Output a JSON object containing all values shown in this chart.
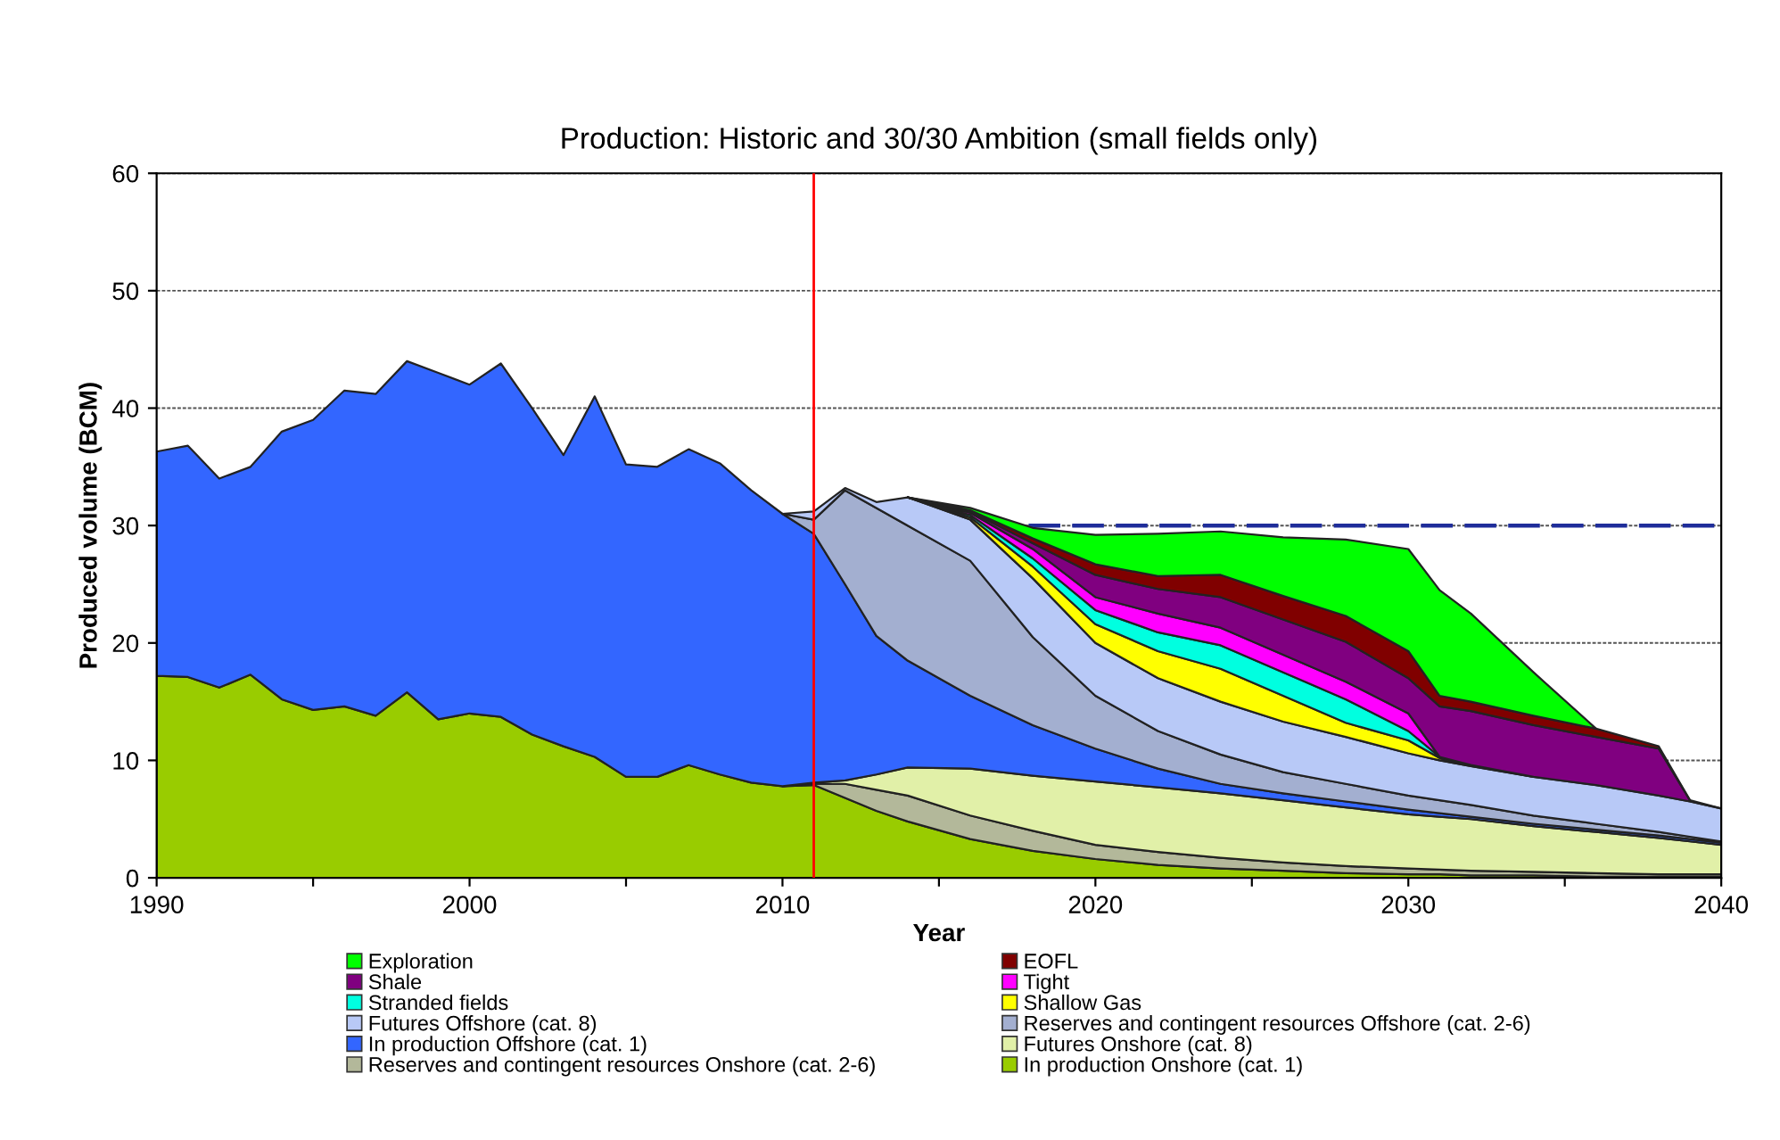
{
  "chart_data": {
    "type": "area",
    "stacked": true,
    "title": "Production: Historic and 30/30 Ambition (small fields only)",
    "xlabel": "Year",
    "ylabel": "Produced volume (BCM)",
    "x": [
      1990,
      1991,
      1992,
      1993,
      1994,
      1995,
      1996,
      1997,
      1998,
      1999,
      2000,
      2001,
      2002,
      2003,
      2004,
      2005,
      2006,
      2007,
      2008,
      2009,
      2010,
      2011,
      2012,
      2013,
      2014,
      2016,
      2018,
      2020,
      2022,
      2024,
      2026,
      2028,
      2030,
      2031,
      2032,
      2034,
      2036,
      2038,
      2039,
      2040
    ],
    "series": [
      {
        "name": "In production Onshore (cat. 1)",
        "color": "#99cc00",
        "values": [
          17.2,
          17.1,
          16.2,
          17.3,
          15.2,
          14.3,
          14.6,
          13.8,
          15.8,
          13.5,
          14.0,
          13.7,
          12.2,
          11.2,
          10.3,
          8.6,
          8.6,
          9.6,
          8.8,
          8.1,
          7.8,
          7.9,
          6.8,
          5.7,
          4.8,
          3.3,
          2.3,
          1.6,
          1.1,
          0.8,
          0.6,
          0.4,
          0.3,
          0.3,
          0.2,
          0.2,
          0.1,
          0.1,
          0.1,
          0.1
        ]
      },
      {
        "name": "Reserves and contingent resources Onshore (cat. 2-6)",
        "color": "#b3b89a",
        "values": [
          null,
          null,
          null,
          null,
          null,
          null,
          null,
          null,
          null,
          null,
          null,
          null,
          null,
          null,
          null,
          null,
          null,
          null,
          null,
          null,
          0,
          0.1,
          1.2,
          1.8,
          2.2,
          2.0,
          1.7,
          1.2,
          1.1,
          0.9,
          0.7,
          0.6,
          0.5,
          0.4,
          0.4,
          0.3,
          0.3,
          0.2,
          0.2,
          0.2
        ]
      },
      {
        "name": "Futures Onshore (cat. 8)",
        "color": "#e1f0a8",
        "values": [
          null,
          null,
          null,
          null,
          null,
          null,
          null,
          null,
          null,
          null,
          null,
          null,
          null,
          null,
          null,
          null,
          null,
          null,
          null,
          null,
          0,
          0.1,
          0.3,
          1.3,
          2.4,
          4.0,
          4.7,
          5.4,
          5.5,
          5.5,
          5.3,
          5.0,
          4.6,
          4.5,
          4.4,
          3.9,
          3.5,
          3.1,
          2.8,
          2.5
        ]
      },
      {
        "name": "In production Offshore (cat. 1)",
        "color": "#3366ff",
        "values": [
          19.1,
          19.7,
          17.8,
          17.7,
          22.8,
          24.7,
          26.9,
          27.4,
          28.2,
          29.5,
          28.0,
          30.1,
          27.8,
          24.8,
          30.7,
          26.6,
          26.4,
          26.9,
          26.5,
          24.9,
          23.2,
          21.2,
          16.7,
          11.8,
          9.1,
          6.2,
          4.3,
          2.8,
          1.6,
          0.8,
          0.6,
          0.5,
          0.4,
          0.3,
          0.2,
          0.2,
          0.2,
          0.2,
          0.2,
          0.2
        ]
      },
      {
        "name": "Reserves and contingent resources Offshore (cat. 2-6)",
        "color": "#a3afd0",
        "values": [
          null,
          null,
          null,
          null,
          null,
          null,
          null,
          null,
          null,
          null,
          null,
          null,
          null,
          null,
          null,
          null,
          null,
          null,
          null,
          null,
          0,
          1.2,
          8.0,
          10.9,
          11.5,
          11.5,
          7.5,
          4.5,
          3.2,
          2.5,
          1.8,
          1.5,
          1.2,
          1.1,
          1.0,
          0.7,
          0.5,
          0.3,
          0.2,
          0.1
        ]
      },
      {
        "name": "Futures Offshore (cat. 8)",
        "color": "#b8c9f7",
        "values": [
          null,
          null,
          null,
          null,
          null,
          null,
          null,
          null,
          null,
          null,
          null,
          null,
          null,
          null,
          null,
          null,
          null,
          null,
          null,
          null,
          0,
          0.7,
          0.2,
          0.5,
          2.4,
          3.5,
          5.0,
          4.5,
          4.5,
          4.5,
          4.3,
          4.0,
          3.6,
          3.4,
          3.3,
          3.3,
          3.3,
          3.1,
          3.0,
          2.8
        ]
      },
      {
        "name": "Shallow Gas",
        "color": "#ffff00",
        "values": [
          null,
          null,
          null,
          null,
          null,
          null,
          null,
          null,
          null,
          null,
          null,
          null,
          null,
          null,
          null,
          null,
          null,
          null,
          null,
          null,
          null,
          null,
          null,
          null,
          0,
          0.2,
          1.0,
          1.6,
          2.3,
          2.8,
          2.2,
          1.2,
          1.1,
          0.2,
          0.1,
          0,
          null,
          null,
          null,
          null
        ]
      },
      {
        "name": "Stranded fields",
        "color": "#00ffe0",
        "values": [
          null,
          null,
          null,
          null,
          null,
          null,
          null,
          null,
          null,
          null,
          null,
          null,
          null,
          null,
          null,
          null,
          null,
          null,
          null,
          null,
          null,
          null,
          null,
          null,
          0,
          0.2,
          0.7,
          1.2,
          1.6,
          2.0,
          2.0,
          2.0,
          0.8,
          0.1,
          0,
          null,
          null,
          null,
          null,
          null
        ]
      },
      {
        "name": "Tight",
        "color": "#ff00ff",
        "values": [
          null,
          null,
          null,
          null,
          null,
          null,
          null,
          null,
          null,
          null,
          null,
          null,
          null,
          null,
          null,
          null,
          null,
          null,
          null,
          null,
          null,
          null,
          null,
          null,
          0,
          0.2,
          0.8,
          1.1,
          1.6,
          1.5,
          1.5,
          1.5,
          1.5,
          0,
          null,
          null,
          null,
          null,
          null,
          null
        ]
      },
      {
        "name": "Shale",
        "color": "#800080",
        "values": [
          null,
          null,
          null,
          null,
          null,
          null,
          null,
          null,
          null,
          null,
          null,
          null,
          null,
          null,
          null,
          null,
          null,
          null,
          null,
          null,
          null,
          null,
          null,
          null,
          0,
          0.1,
          0.5,
          1.9,
          2.1,
          2.6,
          3.0,
          3.4,
          3.0,
          4.3,
          4.6,
          4.4,
          4.1,
          4.0,
          0.1,
          0
        ]
      },
      {
        "name": "EOFL",
        "color": "#800000",
        "values": [
          null,
          null,
          null,
          null,
          null,
          null,
          null,
          null,
          null,
          null,
          null,
          null,
          null,
          null,
          null,
          null,
          null,
          null,
          null,
          null,
          null,
          null,
          null,
          null,
          0,
          0.1,
          0.4,
          0.9,
          1.1,
          1.9,
          2.0,
          2.2,
          2.3,
          0.9,
          0.8,
          0.8,
          0.7,
          0.2,
          0,
          null
        ]
      },
      {
        "name": "Exploration",
        "color": "#00ff00",
        "values": [
          null,
          null,
          null,
          null,
          null,
          null,
          null,
          null,
          null,
          null,
          null,
          null,
          null,
          null,
          null,
          null,
          null,
          null,
          null,
          null,
          null,
          null,
          null,
          null,
          0,
          0.2,
          0.9,
          2.5,
          3.6,
          3.7,
          5.0,
          6.5,
          8.7,
          9.0,
          7.5,
          3.7,
          0,
          null,
          null,
          null
        ]
      }
    ],
    "xlim": [
      1990,
      2040
    ],
    "xticks": [
      1990,
      {
        "value": 1995,
        "label": null
      },
      2000,
      {
        "value": 2005,
        "label": null
      },
      2010,
      {
        "value": 2015,
        "label": null
      },
      2020,
      {
        "value": 2025,
        "label": null
      },
      2030,
      {
        "value": 2035,
        "label": null
      },
      2040
    ],
    "ylim": [
      0,
      60
    ],
    "yticks": [
      0,
      10,
      20,
      30,
      40,
      50,
      60
    ],
    "ref_lines": [
      {
        "axis": "x",
        "value": 2011,
        "color": "#ff0000",
        "line_style": "solid"
      },
      {
        "axis": "y",
        "value": 30,
        "color": "#1f2d9a",
        "line_style": "dashed"
      }
    ],
    "grid": "y",
    "legend": "bottom"
  }
}
